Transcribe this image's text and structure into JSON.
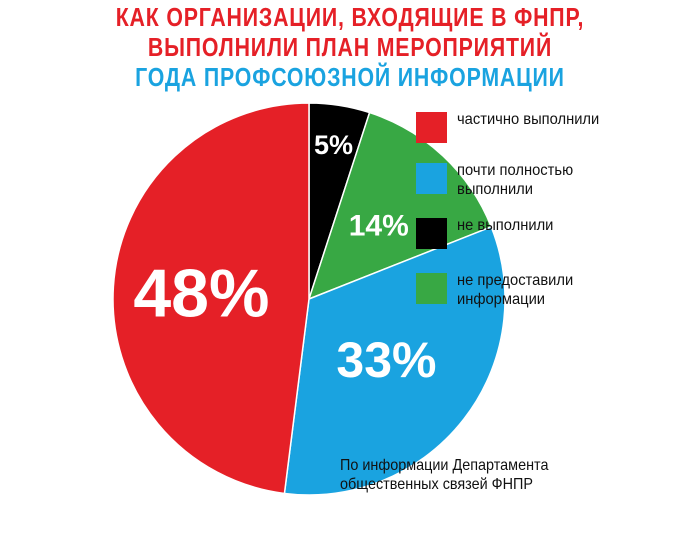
{
  "title": {
    "line1": "КАК ОРГАНИЗАЦИИ, ВХОДЯЩИЕ В ФНПР,",
    "line2": "ВЫПОЛНИЛИ ПЛАН МЕРОПРИЯТИЙ",
    "line3": "ГОДА ПРОФСОЮЗНОЙ ИНФОРМАЦИИ"
  },
  "legend": [
    {
      "label": "частично выполнили",
      "color": "#e52027"
    },
    {
      "label": "почти полностью выполнили",
      "color": "#1aa3e0"
    },
    {
      "label": "не выполнили",
      "color": "#000000"
    },
    {
      "label": "не предоставили информации",
      "color": "#38a844"
    }
  ],
  "source": {
    "line1": "По информации Департамента",
    "line2": "общественных связей ФНПР"
  },
  "chart_data": {
    "type": "pie",
    "title": "КАК ОРГАНИЗАЦИИ, ВХОДЯЩИЕ В ФНПР, ВЫПОЛНИЛИ ПЛАН МЕРОПРИЯТИЙ ГОДА ПРОФСОЮЗНОЙ ИНФОРМАЦИИ",
    "slices": [
      {
        "label": "не выполнили",
        "value": 5,
        "display": "5%",
        "color": "#000000"
      },
      {
        "label": "не предоставили информации",
        "value": 14,
        "display": "14%",
        "color": "#38a844"
      },
      {
        "label": "почти полностью выполнили",
        "value": 33,
        "display": "33%",
        "color": "#1aa3e0"
      },
      {
        "label": "частично выполнили",
        "value": 48,
        "display": "48%",
        "color": "#e52027"
      }
    ]
  }
}
